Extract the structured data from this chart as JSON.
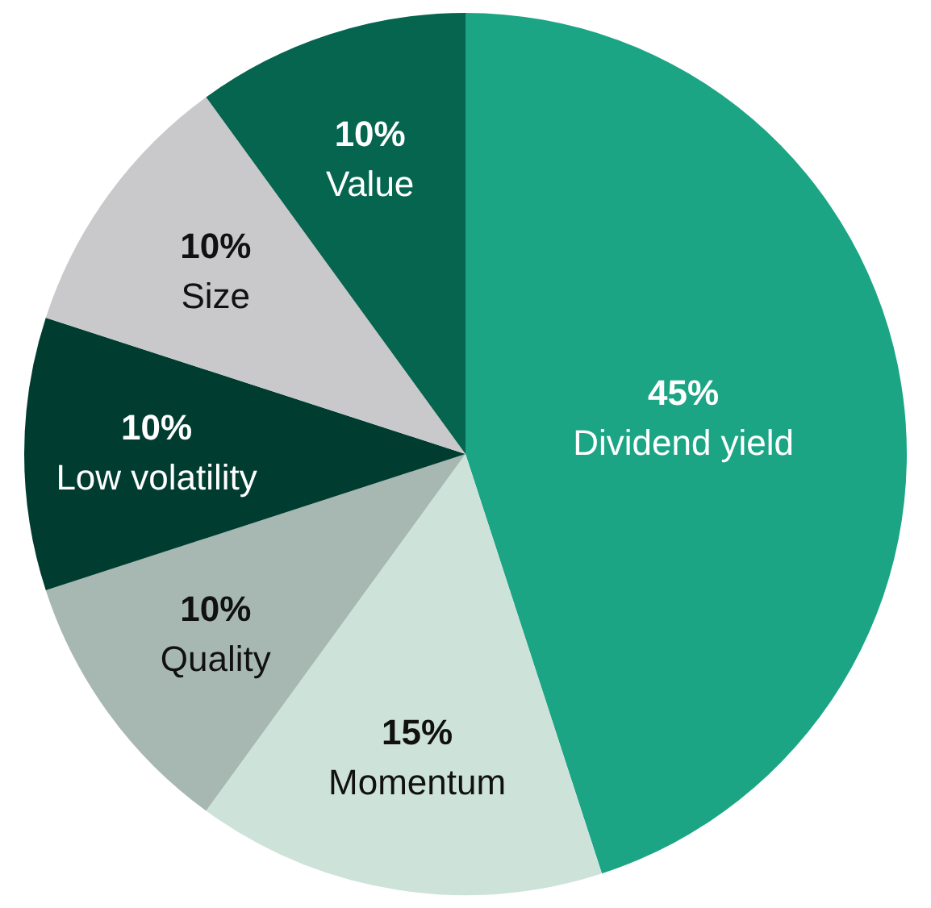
{
  "chart_data": {
    "type": "pie",
    "categories": [
      "Dividend yield",
      "Momentum",
      "Quality",
      "Low volatility",
      "Size",
      "Value"
    ],
    "values": [
      45,
      15,
      10,
      10,
      10,
      10
    ],
    "value_labels": [
      "45%",
      "15%",
      "10%",
      "10%",
      "10%",
      "10%"
    ],
    "colors": [
      "#1ba584",
      "#cde3d9",
      "#a7b8b3",
      "#003d30",
      "#c9c9cb",
      "#05654f"
    ],
    "legend": false
  }
}
